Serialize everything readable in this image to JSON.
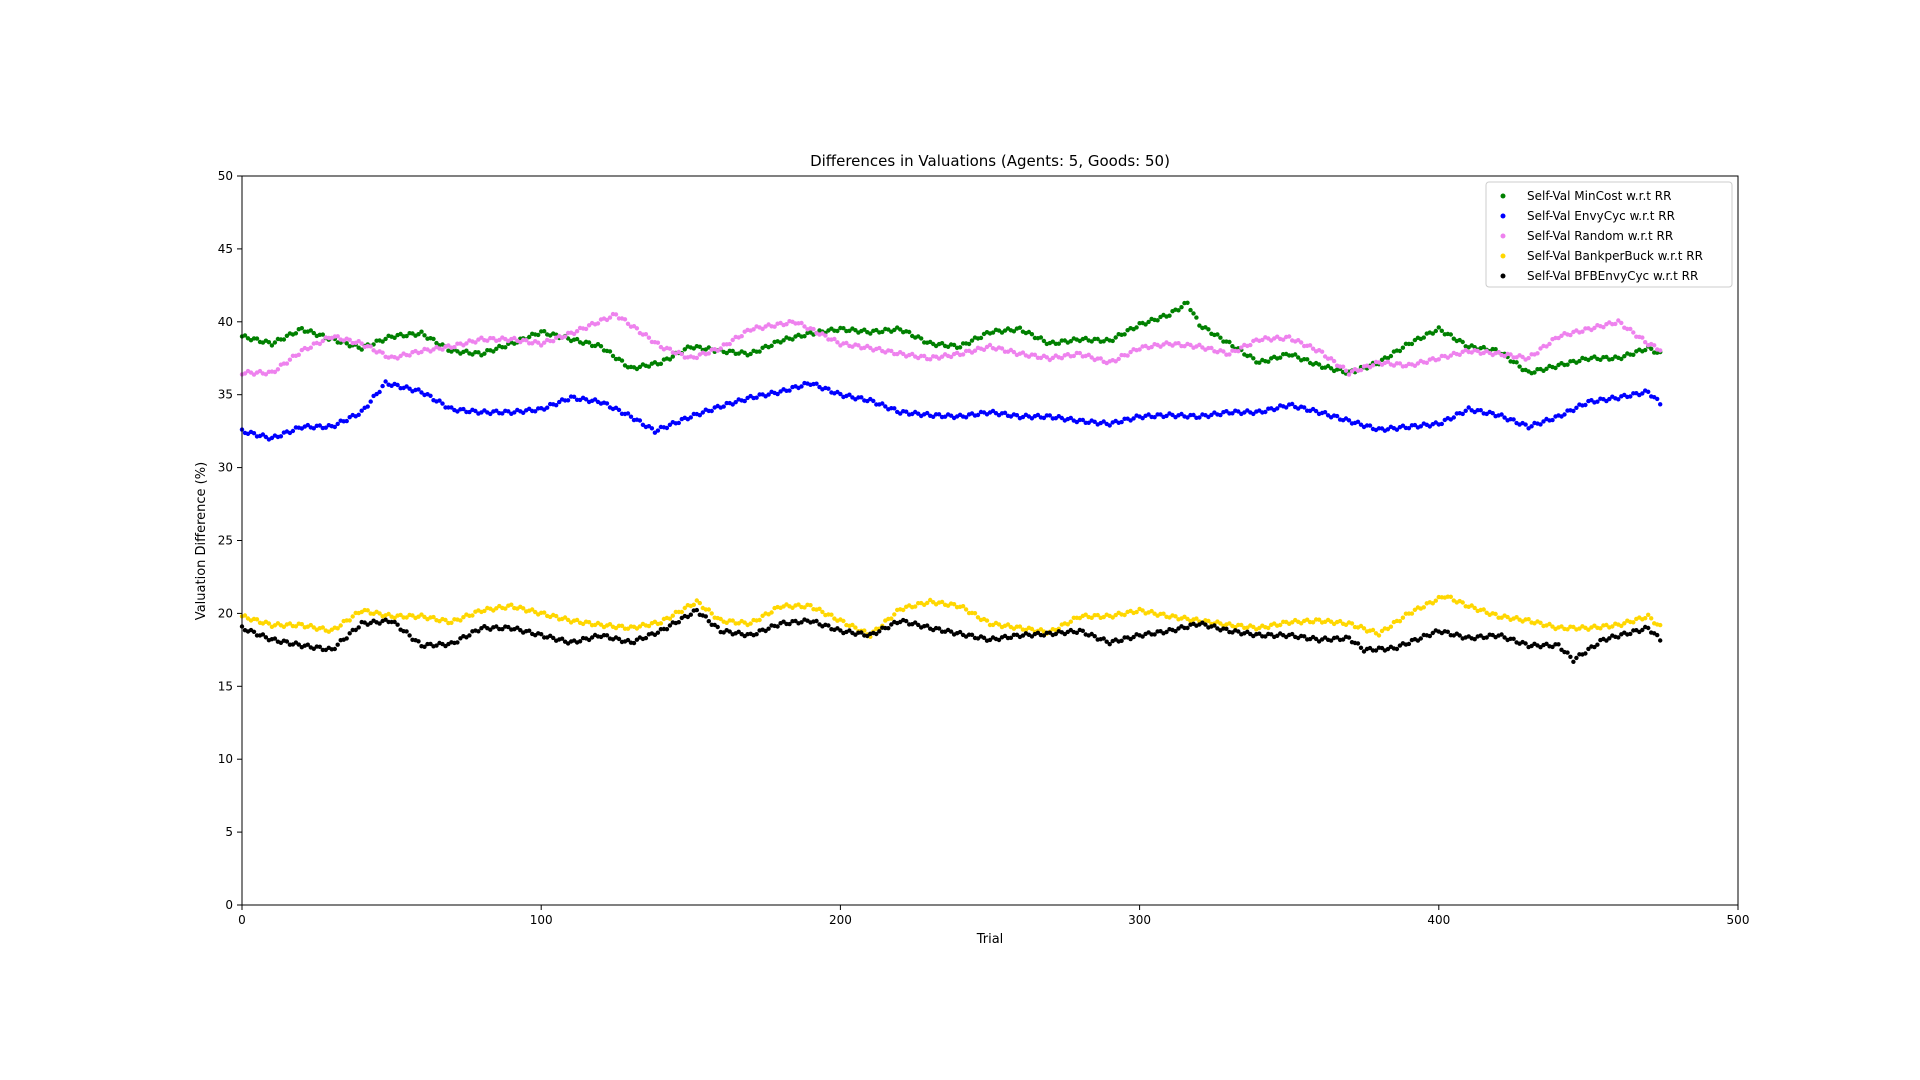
{
  "chart_data": {
    "type": "scatter",
    "title": "Differences in Valuations (Agents: 5, Goods: 50)",
    "xlabel": "Trial",
    "ylabel": "Valuation Difference (%)",
    "xlim": [
      0,
      500
    ],
    "ylim": [
      0,
      50
    ],
    "xticks": [
      "0",
      "100",
      "200",
      "300",
      "400",
      "500"
    ],
    "yticks": [
      "0",
      "5",
      "10",
      "15",
      "20",
      "25",
      "30",
      "35",
      "40",
      "45",
      "50"
    ],
    "grid": false,
    "legend_position": "top-right",
    "n_trials": 475,
    "series": [
      {
        "name": "Self-Val MinCost w.r.t RR",
        "color": "#008000",
        "x": [
          0,
          10,
          20,
          30,
          40,
          50,
          60,
          70,
          80,
          90,
          100,
          110,
          120,
          130,
          140,
          150,
          160,
          170,
          180,
          190,
          200,
          210,
          220,
          230,
          240,
          250,
          260,
          270,
          280,
          290,
          300,
          310,
          316,
          320,
          330,
          340,
          350,
          360,
          370,
          380,
          390,
          400,
          410,
          420,
          430,
          440,
          450,
          460,
          470,
          475
        ],
        "values": [
          39.0,
          38.5,
          39.5,
          38.8,
          38.2,
          39.0,
          39.2,
          38.0,
          37.8,
          38.5,
          39.3,
          38.8,
          38.3,
          36.8,
          37.2,
          38.3,
          38.0,
          37.8,
          38.7,
          39.2,
          39.5,
          39.3,
          39.5,
          38.5,
          38.3,
          39.3,
          39.5,
          38.5,
          38.8,
          38.7,
          39.8,
          40.5,
          41.3,
          39.8,
          38.5,
          37.2,
          37.8,
          37.0,
          36.5,
          37.2,
          38.5,
          39.5,
          38.3,
          38.0,
          36.5,
          37.0,
          37.5,
          37.5,
          38.2,
          37.7
        ]
      },
      {
        "name": "Self-Val EnvyCyc w.r.t RR",
        "color": "#0000ff",
        "x": [
          0,
          10,
          20,
          30,
          40,
          48,
          60,
          70,
          80,
          90,
          100,
          110,
          120,
          130,
          138,
          150,
          160,
          170,
          180,
          190,
          200,
          210,
          220,
          230,
          240,
          250,
          260,
          270,
          280,
          290,
          300,
          310,
          320,
          330,
          340,
          350,
          360,
          370,
          380,
          390,
          400,
          410,
          420,
          430,
          440,
          450,
          460,
          470,
          475
        ],
        "values": [
          32.5,
          32.0,
          32.8,
          32.8,
          33.8,
          35.8,
          35.2,
          34.0,
          33.8,
          33.8,
          34.0,
          34.8,
          34.5,
          33.5,
          32.5,
          33.5,
          34.2,
          34.8,
          35.2,
          35.8,
          35.0,
          34.6,
          33.8,
          33.6,
          33.5,
          33.8,
          33.5,
          33.5,
          33.2,
          33.0,
          33.5,
          33.6,
          33.5,
          33.8,
          33.8,
          34.3,
          33.8,
          33.2,
          32.6,
          32.8,
          33.0,
          34.0,
          33.6,
          32.8,
          33.5,
          34.5,
          34.8,
          35.2,
          34.2
        ]
      },
      {
        "name": "Self-Val Random w.r.t RR",
        "color": "#ee82ee",
        "x": [
          0,
          10,
          20,
          30,
          40,
          50,
          60,
          70,
          80,
          90,
          100,
          110,
          125,
          140,
          150,
          160,
          170,
          185,
          200,
          210,
          220,
          230,
          240,
          250,
          260,
          270,
          280,
          290,
          300,
          310,
          320,
          330,
          340,
          350,
          360,
          370,
          380,
          390,
          400,
          410,
          420,
          430,
          440,
          450,
          460,
          470,
          475
        ],
        "values": [
          36.5,
          36.5,
          38.0,
          39.0,
          38.5,
          37.5,
          38.0,
          38.3,
          38.8,
          38.8,
          38.5,
          39.2,
          40.5,
          38.3,
          37.5,
          38.2,
          39.5,
          40.0,
          38.5,
          38.2,
          37.8,
          37.5,
          37.8,
          38.3,
          37.8,
          37.5,
          37.8,
          37.2,
          38.2,
          38.5,
          38.3,
          37.8,
          38.8,
          38.9,
          38.0,
          36.5,
          37.2,
          37.0,
          37.5,
          38.0,
          37.8,
          37.5,
          39.0,
          39.5,
          40.0,
          38.5,
          38.0
        ]
      },
      {
        "name": "Self-Val BankperBuck w.r.t RR",
        "color": "#ffd700",
        "x": [
          0,
          10,
          20,
          30,
          40,
          50,
          60,
          70,
          80,
          90,
          100,
          110,
          120,
          130,
          140,
          152,
          160,
          170,
          180,
          190,
          200,
          210,
          220,
          230,
          240,
          250,
          260,
          270,
          280,
          290,
          300,
          310,
          320,
          330,
          340,
          350,
          360,
          370,
          380,
          390,
          402,
          410,
          420,
          430,
          440,
          450,
          460,
          470,
          475
        ],
        "values": [
          19.8,
          19.2,
          19.2,
          18.8,
          20.2,
          19.8,
          19.8,
          19.4,
          20.2,
          20.5,
          20.0,
          19.5,
          19.2,
          19.0,
          19.4,
          20.8,
          19.5,
          19.3,
          20.5,
          20.5,
          19.5,
          18.5,
          20.3,
          20.8,
          20.5,
          19.3,
          19.0,
          18.7,
          19.8,
          19.8,
          20.2,
          19.8,
          19.5,
          19.2,
          19.0,
          19.4,
          19.5,
          19.3,
          18.6,
          20.0,
          21.2,
          20.5,
          19.8,
          19.5,
          19.0,
          19.0,
          19.2,
          19.8,
          18.9
        ]
      },
      {
        "name": "Self-Val BFBEnvyCyc w.r.t RR",
        "color": "#000000",
        "x": [
          0,
          10,
          20,
          30,
          40,
          50,
          60,
          70,
          80,
          90,
          100,
          110,
          120,
          130,
          140,
          152,
          160,
          170,
          180,
          190,
          200,
          210,
          220,
          230,
          240,
          250,
          260,
          270,
          280,
          290,
          300,
          310,
          320,
          330,
          340,
          350,
          360,
          370,
          375,
          385,
          400,
          410,
          420,
          430,
          440,
          445,
          455,
          470,
          475
        ],
        "values": [
          19.0,
          18.2,
          17.8,
          17.5,
          19.3,
          19.5,
          17.8,
          17.9,
          19.0,
          19.0,
          18.5,
          18.0,
          18.5,
          18.0,
          18.8,
          20.2,
          18.8,
          18.5,
          19.3,
          19.5,
          18.8,
          18.5,
          19.5,
          19.0,
          18.6,
          18.2,
          18.5,
          18.6,
          18.8,
          18.0,
          18.5,
          18.8,
          19.3,
          18.8,
          18.5,
          18.5,
          18.2,
          18.3,
          17.5,
          17.6,
          18.8,
          18.3,
          18.5,
          17.8,
          17.8,
          16.8,
          18.2,
          19.0,
          18.0
        ]
      }
    ]
  }
}
